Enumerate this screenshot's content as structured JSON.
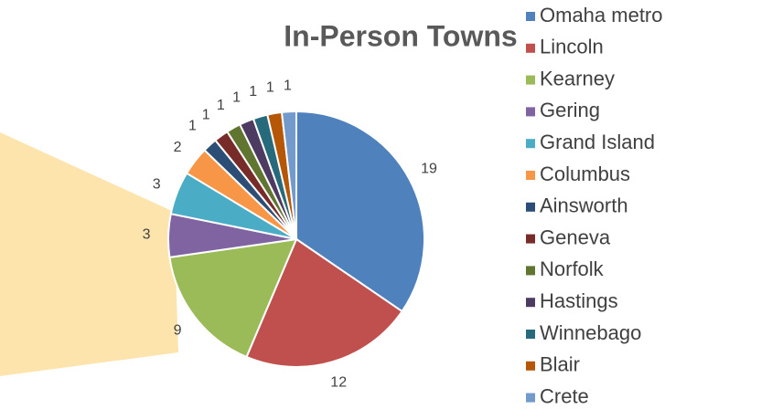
{
  "chart_data": {
    "type": "pie",
    "title": "In-Person Towns",
    "categories": [
      "Omaha metro",
      "Lincoln",
      "Kearney",
      "Gering",
      "Grand Island",
      "Columbus",
      "Ainsworth",
      "Geneva",
      "Norfolk",
      "Hastings",
      "Winnebago",
      "Blair",
      "Crete"
    ],
    "values": [
      19,
      12,
      9,
      3,
      3,
      2,
      1,
      1,
      1,
      1,
      1,
      1,
      1
    ],
    "colors": [
      "#4f81bd",
      "#c0504d",
      "#9bbb59",
      "#8064a2",
      "#4bacc6",
      "#f79646",
      "#2c4d75",
      "#772c2a",
      "#5f7530",
      "#4d3b62",
      "#276a7c",
      "#b65708",
      "#729aca"
    ],
    "legend": "right"
  }
}
